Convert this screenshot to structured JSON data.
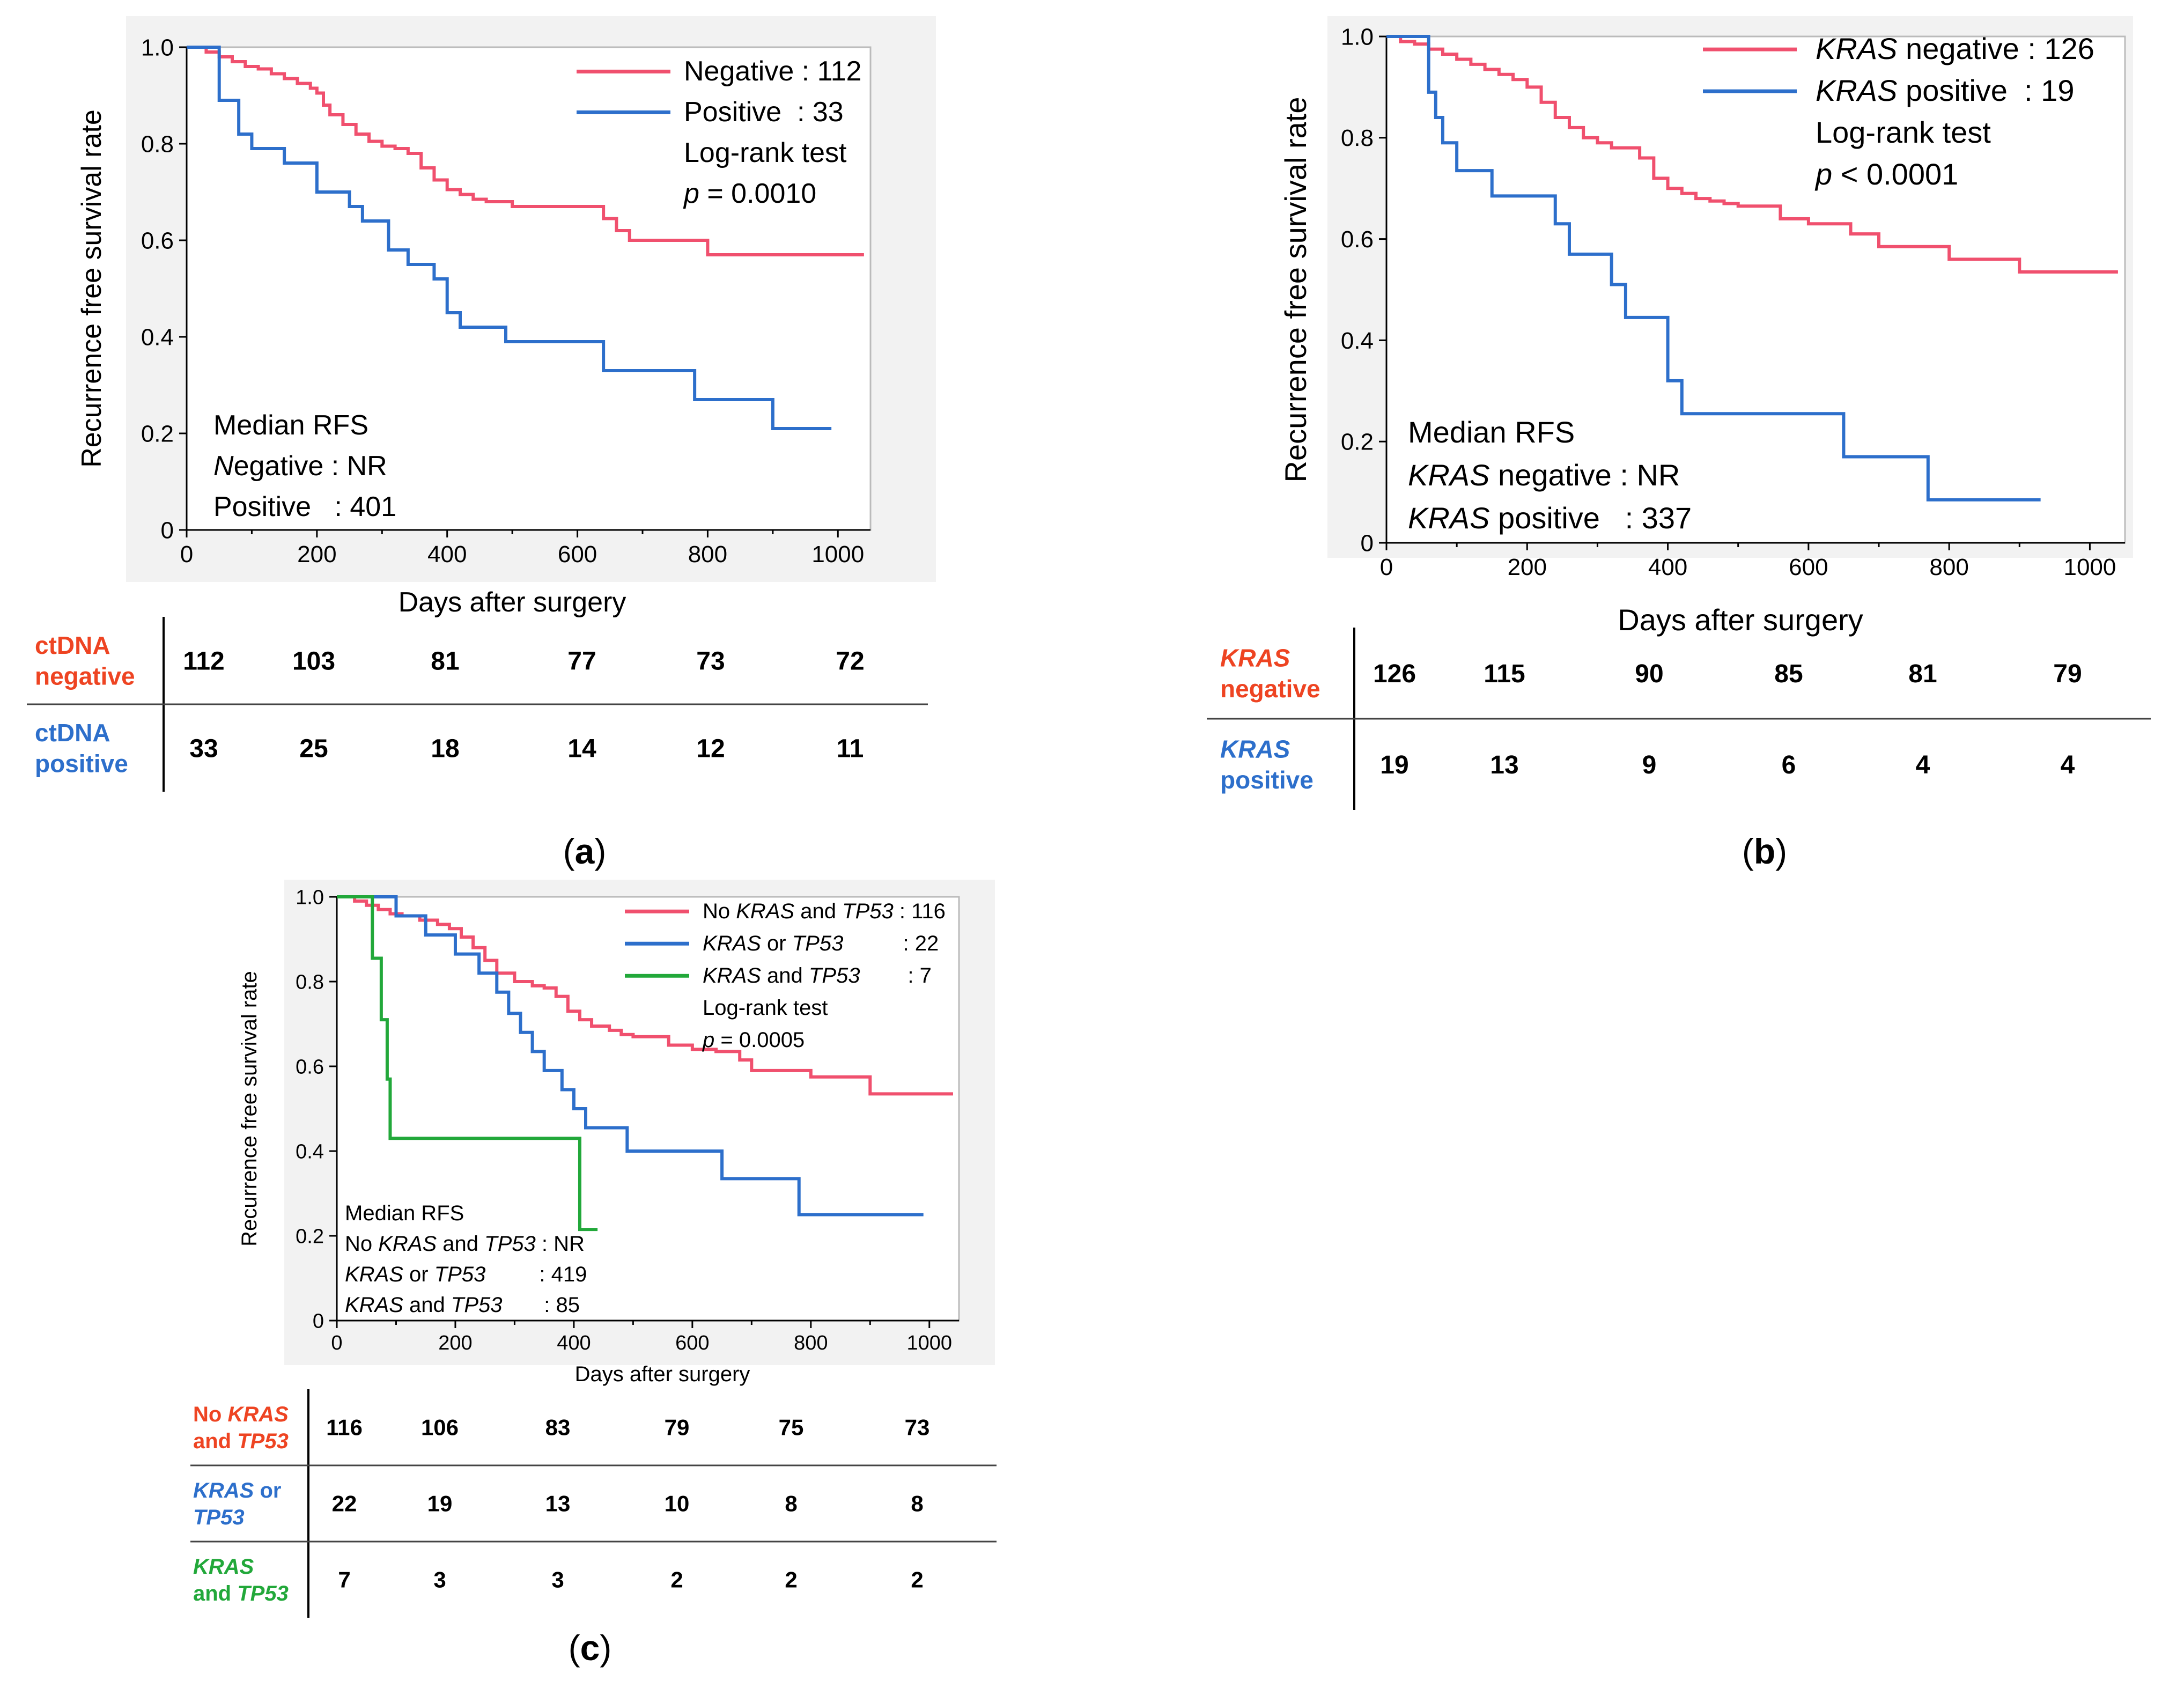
{
  "chart_data": [
    {
      "id": "a",
      "type": "line",
      "panel_label": "(a)",
      "title": "",
      "xlabel": "Days after surgery",
      "ylabel": "Recurrence free survival rate",
      "xlim": [
        0,
        1050
      ],
      "ylim": [
        0,
        1.0
      ],
      "x_ticks": [
        "0",
        "200",
        "400",
        "600",
        "800",
        "1000"
      ],
      "y_ticks": [
        "0",
        "0.2",
        "0.4",
        "0.6",
        "0.8",
        "1.0"
      ],
      "legend": {
        "position": "top-right",
        "entries": [
          "Negative : 112",
          "Positive  : 33"
        ],
        "extra": [
          [
            "Log-rank test"
          ],
          [
            {
              "i": "p"
            },
            " = 0.0010"
          ]
        ]
      },
      "median_rfs": [
        [
          "Median RFS"
        ],
        [
          {
            "i": "N"
          },
          "egative : NR"
        ],
        [
          "Positive   : 401"
        ]
      ],
      "series": [
        {
          "name": "Negative",
          "color": "#f0506e",
          "x": [
            0,
            30,
            50,
            70,
            90,
            110,
            130,
            150,
            170,
            190,
            200,
            210,
            220,
            240,
            260,
            280,
            300,
            320,
            340,
            360,
            380,
            400,
            420,
            440,
            460,
            480,
            500,
            640,
            660,
            680,
            700,
            800,
            1040
          ],
          "y": [
            1.0,
            0.99,
            0.98,
            0.97,
            0.96,
            0.955,
            0.945,
            0.935,
            0.925,
            0.915,
            0.905,
            0.88,
            0.86,
            0.84,
            0.82,
            0.805,
            0.795,
            0.79,
            0.78,
            0.75,
            0.725,
            0.705,
            0.695,
            0.685,
            0.68,
            0.68,
            0.67,
            0.645,
            0.62,
            0.6,
            0.6,
            0.57,
            0.57
          ]
        },
        {
          "name": "Positive",
          "color": "#2d6fcb",
          "x": [
            0,
            50,
            80,
            100,
            150,
            200,
            250,
            270,
            310,
            340,
            380,
            400,
            420,
            490,
            640,
            780,
            900,
            990
          ],
          "y": [
            1.0,
            0.89,
            0.82,
            0.79,
            0.76,
            0.7,
            0.67,
            0.64,
            0.58,
            0.55,
            0.52,
            0.45,
            0.42,
            0.39,
            0.33,
            0.27,
            0.21,
            0.21
          ]
        }
      ],
      "risk_table": {
        "rows": [
          {
            "label": [
              "ctDNA",
              "negative"
            ],
            "color": "#ee4422",
            "values": [
              "112",
              "103",
              "81",
              "77",
              "73",
              "72"
            ]
          },
          {
            "label": [
              "ctDNA",
              "positive"
            ],
            "color": "#2d6fcb",
            "values": [
              "33",
              "25",
              "18",
              "14",
              "12",
              "11"
            ]
          }
        ]
      }
    },
    {
      "id": "b",
      "type": "line",
      "panel_label": "(b)",
      "title": "",
      "xlabel": "Days after surgery",
      "ylabel": "Recurrence free survival rate",
      "xlim": [
        0,
        1050
      ],
      "ylim": [
        0,
        1.0
      ],
      "x_ticks": [
        "0",
        "200",
        "400",
        "600",
        "800",
        "1000"
      ],
      "y_ticks": [
        "0",
        "0.2",
        "0.4",
        "0.6",
        "0.8",
        "1.0"
      ],
      "legend": {
        "position": "top-right",
        "entries": [
          [
            {
              "i": "KRAS"
            },
            " negative : 126"
          ],
          [
            {
              "i": "KRAS"
            },
            " positive  : 19"
          ]
        ],
        "extra": [
          [
            "Log-rank test"
          ],
          [
            {
              "i": "p"
            },
            " < 0.0001"
          ]
        ]
      },
      "median_rfs": [
        [
          "Median RFS"
        ],
        [
          {
            "i": "KRAS"
          },
          " negative : NR"
        ],
        [
          {
            "i": "KRAS"
          },
          " positive   : 337"
        ]
      ],
      "series": [
        {
          "name": "KRAS negative",
          "color": "#f0506e",
          "x": [
            0,
            20,
            40,
            60,
            80,
            100,
            120,
            140,
            160,
            180,
            200,
            220,
            240,
            260,
            280,
            300,
            320,
            340,
            360,
            380,
            400,
            420,
            440,
            460,
            480,
            500,
            560,
            600,
            660,
            700,
            800,
            900,
            1040
          ],
          "y": [
            1.0,
            0.99,
            0.985,
            0.975,
            0.965,
            0.955,
            0.945,
            0.935,
            0.925,
            0.915,
            0.9,
            0.87,
            0.84,
            0.82,
            0.8,
            0.79,
            0.78,
            0.78,
            0.76,
            0.72,
            0.7,
            0.69,
            0.68,
            0.675,
            0.67,
            0.665,
            0.64,
            0.63,
            0.61,
            0.585,
            0.56,
            0.535,
            0.535
          ]
        },
        {
          "name": "KRAS positive",
          "color": "#2d6fcb",
          "x": [
            0,
            60,
            70,
            80,
            100,
            150,
            200,
            240,
            260,
            320,
            340,
            400,
            420,
            650,
            770,
            930
          ],
          "y": [
            1.0,
            0.89,
            0.84,
            0.79,
            0.735,
            0.685,
            0.685,
            0.63,
            0.57,
            0.51,
            0.445,
            0.32,
            0.255,
            0.17,
            0.085,
            0.085
          ]
        }
      ],
      "risk_table": {
        "rows": [
          {
            "label": [
              [
                {
                  "i": "KRAS"
                }
              ],
              [
                "negative"
              ]
            ],
            "color": "#ee4422",
            "values": [
              "126",
              "115",
              "90",
              "85",
              "81",
              "79"
            ]
          },
          {
            "label": [
              [
                {
                  "i": "KRAS"
                }
              ],
              [
                "positive"
              ]
            ],
            "color": "#2d6fcb",
            "values": [
              "19",
              "13",
              "9",
              "6",
              "4",
              "4"
            ]
          }
        ]
      }
    },
    {
      "id": "c",
      "type": "line",
      "panel_label": "(c)",
      "title": "",
      "xlabel": "Days after surgery",
      "ylabel": "Recurrence free survival rate",
      "xlim": [
        0,
        1050
      ],
      "ylim": [
        0,
        1.0
      ],
      "x_ticks": [
        "0",
        "200",
        "400",
        "600",
        "800",
        "1000"
      ],
      "y_ticks": [
        "0",
        "0.2",
        "0.4",
        "0.6",
        "0.8",
        "1.0"
      ],
      "legend": {
        "position": "top-right",
        "entries": [
          [
            "No ",
            {
              "i": "KRAS"
            },
            " and ",
            {
              "i": "TP53"
            },
            " : 116"
          ],
          [
            {
              "i": "KRAS"
            },
            " or ",
            {
              "i": "TP53"
            },
            "          : 22"
          ],
          [
            {
              "i": "KRAS"
            },
            " and ",
            {
              "i": "TP53"
            },
            "        : 7"
          ]
        ],
        "extra": [
          [
            "Log-rank test"
          ],
          [
            {
              "i": "p"
            },
            " = 0.0005"
          ]
        ]
      },
      "median_rfs": [
        [
          "Median RFS"
        ],
        [
          "No ",
          {
            "i": "KRAS"
          },
          " and ",
          {
            "i": "TP53"
          },
          " : NR"
        ],
        [
          {
            "i": "KRAS"
          },
          " or ",
          {
            "i": "TP53"
          },
          "         : 419"
        ],
        [
          {
            "i": "KRAS"
          },
          " and ",
          {
            "i": "TP53"
          },
          "       : 85"
        ]
      ],
      "series": [
        {
          "name": "No KRAS and TP53",
          "color": "#f0506e",
          "x": [
            0,
            30,
            50,
            70,
            90,
            110,
            140,
            170,
            190,
            210,
            230,
            250,
            270,
            300,
            330,
            350,
            370,
            390,
            410,
            430,
            460,
            480,
            500,
            560,
            600,
            640,
            680,
            700,
            800,
            900,
            1040
          ],
          "y": [
            1.0,
            0.99,
            0.98,
            0.97,
            0.96,
            0.955,
            0.945,
            0.935,
            0.925,
            0.905,
            0.88,
            0.85,
            0.82,
            0.8,
            0.79,
            0.785,
            0.765,
            0.73,
            0.71,
            0.695,
            0.685,
            0.675,
            0.67,
            0.65,
            0.64,
            0.635,
            0.615,
            0.59,
            0.575,
            0.535,
            0.535
          ]
        },
        {
          "name": "KRAS or TP53",
          "color": "#2d6fcb",
          "x": [
            0,
            100,
            150,
            200,
            240,
            270,
            290,
            310,
            330,
            350,
            380,
            400,
            420,
            490,
            650,
            780,
            990
          ],
          "y": [
            1.0,
            0.955,
            0.91,
            0.865,
            0.82,
            0.775,
            0.725,
            0.68,
            0.635,
            0.59,
            0.545,
            0.5,
            0.455,
            0.4,
            0.335,
            0.25,
            0.25
          ]
        },
        {
          "name": "KRAS and TP53",
          "color": "#22a83a",
          "x": [
            0,
            60,
            75,
            85,
            90,
            400,
            410,
            440
          ],
          "y": [
            1.0,
            0.855,
            0.71,
            0.57,
            0.43,
            0.43,
            0.215,
            0.215
          ]
        }
      ],
      "risk_table": {
        "rows": [
          {
            "label": [
              [
                "No ",
                {
                  "i": "KRAS"
                }
              ],
              [
                "and ",
                {
                  "i": "TP53"
                }
              ]
            ],
            "color": "#ee4422",
            "values": [
              "116",
              "106",
              "83",
              "79",
              "75",
              "73"
            ]
          },
          {
            "label": [
              [
                {
                  "i": "KRAS"
                },
                " or"
              ],
              [
                {
                  "i": "TP53"
                }
              ]
            ],
            "color": "#2d6fcb",
            "values": [
              "22",
              "19",
              "13",
              "10",
              "8",
              "8"
            ]
          },
          {
            "label": [
              [
                {
                  "i": "KRAS"
                }
              ],
              [
                "and ",
                {
                  "i": "TP53"
                }
              ]
            ],
            "color": "#22a83a",
            "values": [
              "7",
              "3",
              "3",
              "2",
              "2",
              "2"
            ]
          }
        ]
      }
    }
  ]
}
